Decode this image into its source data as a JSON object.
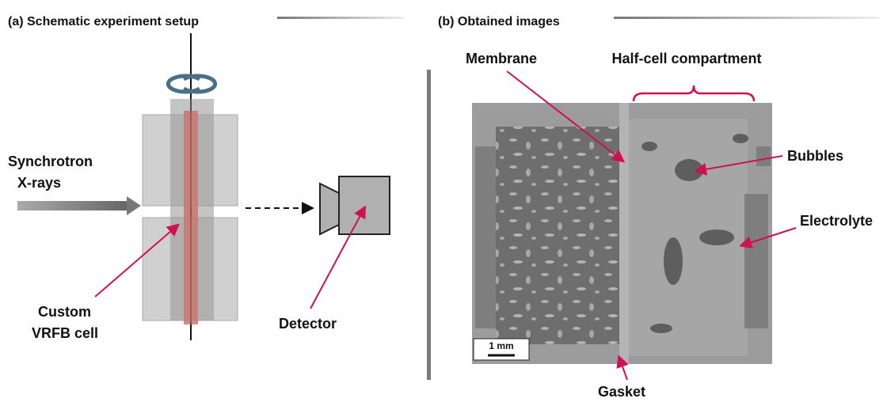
{
  "panel_a": {
    "title": "(a) Schematic experiment setup",
    "source_lines": [
      "Synchrotron",
      "X-rays"
    ],
    "cell_lines": [
      "Custom",
      "VRFB cell"
    ],
    "detector": "Detector"
  },
  "panel_b": {
    "title": "(b) Obtained images",
    "membrane": "Membrane",
    "half_cell": "Half-cell compartment",
    "bubbles": "Bubbles",
    "electrolyte": "Electrolyte",
    "gasket": "Gasket",
    "scale_bar": "1 mm"
  }
}
